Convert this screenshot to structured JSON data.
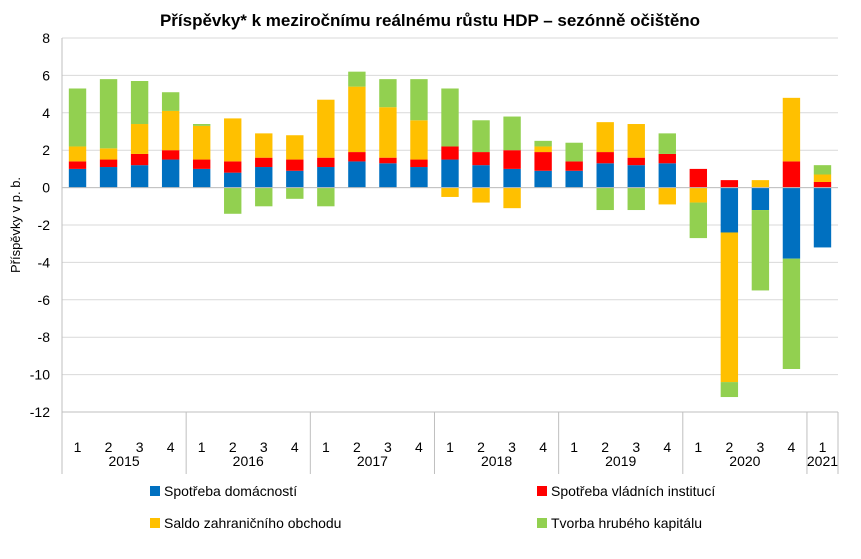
{
  "chart_data": {
    "type": "bar",
    "stacked": true,
    "title": "Příspěvky* k meziročnímu reálnému růstu HDP – sezónně očištěno",
    "ylabel": "Příspěvky v p. b.",
    "ylim": [
      -12,
      8
    ],
    "yticks": [
      -12,
      -10,
      -8,
      -6,
      -4,
      -2,
      0,
      2,
      4,
      6,
      8
    ],
    "grid": true,
    "legend_position": "bottom",
    "categories": [
      "1",
      "2",
      "3",
      "4",
      "1",
      "2",
      "3",
      "4",
      "1",
      "2",
      "3",
      "4",
      "1",
      "2",
      "3",
      "4",
      "1",
      "2",
      "3",
      "4",
      "1",
      "2",
      "3",
      "4",
      "1"
    ],
    "year_groups": [
      {
        "label": "2015",
        "count": 4
      },
      {
        "label": "2016",
        "count": 4
      },
      {
        "label": "2017",
        "count": 4
      },
      {
        "label": "2018",
        "count": 4
      },
      {
        "label": "2019",
        "count": 4
      },
      {
        "label": "2020",
        "count": 4
      },
      {
        "label": "2021",
        "count": 1
      }
    ],
    "series": [
      {
        "name": "Spotřeba domácností",
        "color": "#0070C0",
        "values": [
          1.0,
          1.1,
          1.2,
          1.5,
          1.0,
          0.8,
          1.1,
          0.9,
          1.1,
          1.4,
          1.3,
          1.1,
          1.5,
          1.2,
          1.0,
          0.9,
          0.9,
          1.3,
          1.2,
          1.3,
          0.0,
          -2.4,
          -1.2,
          -3.8,
          -3.2
        ]
      },
      {
        "name": "Spotřeba vládních institucí",
        "color": "#FF0000",
        "values": [
          0.4,
          0.4,
          0.6,
          0.5,
          0.5,
          0.6,
          0.5,
          0.6,
          0.5,
          0.5,
          0.3,
          0.4,
          0.7,
          0.7,
          1.0,
          1.0,
          0.5,
          0.6,
          0.4,
          0.5,
          1.0,
          0.4,
          0.0,
          1.4,
          0.3
        ]
      },
      {
        "name": "Saldo zahraničního obchodu",
        "color": "#FFC000",
        "values": [
          0.8,
          0.6,
          1.6,
          2.1,
          1.8,
          2.3,
          1.3,
          1.3,
          3.1,
          3.5,
          2.7,
          2.1,
          -0.5,
          -0.8,
          -1.1,
          0.3,
          0.0,
          1.6,
          1.8,
          -0.9,
          -0.8,
          -8.0,
          0.4,
          3.4,
          0.4
        ]
      },
      {
        "name": "Tvorba hrubého kapitálu",
        "color": "#92D050",
        "values": [
          3.1,
          3.7,
          2.3,
          1.0,
          0.1,
          -1.4,
          -1.0,
          -0.6,
          -1.0,
          0.8,
          1.5,
          2.2,
          3.1,
          1.7,
          1.8,
          0.3,
          1.0,
          -1.2,
          -1.2,
          1.1,
          -1.9,
          -0.8,
          -4.3,
          -5.9,
          0.5
        ]
      }
    ]
  }
}
